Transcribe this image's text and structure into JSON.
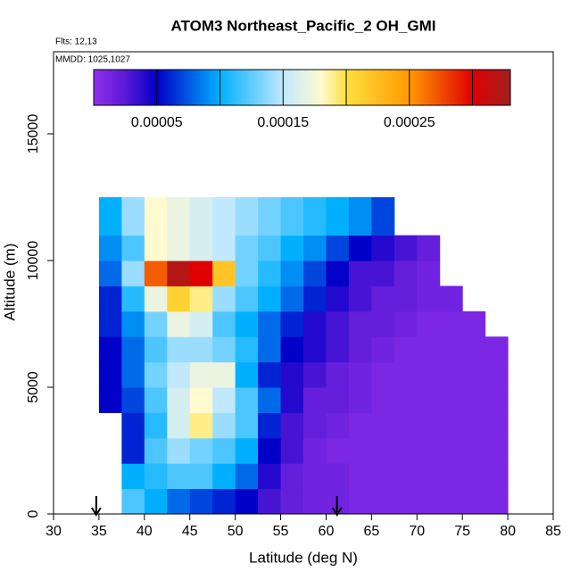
{
  "chart_data": {
    "type": "heatmap",
    "title": "ATOM3 Northeast_Pacific_2 OH_GMI",
    "annotations": [
      "Flts: 12,13",
      "MMDD: 1025,1027"
    ],
    "x_label": "Latitude (deg N)",
    "y_label": "Altitude (m)",
    "xlim": [
      30,
      85
    ],
    "ylim": [
      0,
      18240
    ],
    "xticks": [
      30,
      35,
      40,
      45,
      50,
      55,
      60,
      65,
      70,
      75,
      80,
      85
    ],
    "yticks": [
      0,
      5000,
      10000,
      15000
    ],
    "x_bins": [
      35,
      37.5,
      40,
      42.5,
      45,
      47.5,
      50,
      52.5,
      55,
      57.5,
      60,
      62.5,
      65,
      67.5,
      70,
      72.5,
      75,
      77.5,
      80
    ],
    "y_bins": [
      0,
      1000,
      2000,
      3000,
      4000,
      5000,
      6000,
      7000,
      8000,
      9000,
      10000,
      11000,
      12500
    ],
    "values": [
      [
        null,
        0.00012,
        0.0001,
        8e-05,
        7e-05,
        6e-05,
        5e-05,
        3e-05,
        2e-05,
        1.5e-05,
        1.5e-05,
        1e-05,
        1e-05,
        1e-05,
        1e-05,
        1e-05,
        1e-05,
        1e-05
      ],
      [
        null,
        0.0001,
        0.00011,
        0.00012,
        0.00012,
        0.0001,
        8e-05,
        4e-05,
        2e-05,
        1.5e-05,
        1.5e-05,
        1e-05,
        1e-05,
        1e-05,
        1e-05,
        1e-05,
        1e-05,
        1e-05
      ],
      [
        null,
        6e-05,
        0.00012,
        0.00014,
        0.00013,
        0.00012,
        0.0001,
        5e-05,
        3e-05,
        1.5e-05,
        1e-05,
        1e-05,
        1e-05,
        1e-05,
        1e-05,
        1e-05,
        1e-05,
        1e-05
      ],
      [
        null,
        6e-05,
        0.00011,
        0.00016,
        0.00019,
        0.00014,
        0.00012,
        6e-05,
        3e-05,
        2e-05,
        1.5e-05,
        1e-05,
        1e-05,
        1e-05,
        1e-05,
        1e-05,
        1e-05,
        1e-05
      ],
      [
        5e-05,
        7e-05,
        0.00012,
        0.00016,
        0.00018,
        0.00015,
        0.00012,
        8e-05,
        4e-05,
        2e-05,
        2e-05,
        1.5e-05,
        1e-05,
        1e-05,
        1e-05,
        1e-05,
        1e-05,
        1e-05
      ],
      [
        5e-05,
        8e-05,
        0.00013,
        0.00015,
        0.00017,
        0.00017,
        0.0001,
        6e-05,
        4e-05,
        3e-05,
        2e-05,
        1.5e-05,
        1e-05,
        1e-05,
        1e-05,
        1e-05,
        1e-05,
        1e-05
      ],
      [
        5e-05,
        8e-05,
        0.00012,
        0.00014,
        0.00014,
        0.00013,
        0.00011,
        8e-05,
        5e-05,
        4e-05,
        3e-05,
        2e-05,
        1.5e-05,
        1e-05,
        1e-05,
        1e-05,
        1e-05,
        1e-05
      ],
      [
        6e-05,
        9e-05,
        0.00013,
        0.00017,
        0.00016,
        0.00012,
        0.0001,
        8e-05,
        6e-05,
        4e-05,
        3e-05,
        2e-05,
        2e-05,
        1.5e-05,
        1e-05,
        1e-05,
        1e-05,
        null
      ],
      [
        6e-05,
        0.00011,
        0.00017,
        0.00021,
        0.00019,
        0.00014,
        0.00012,
        0.0001,
        8e-05,
        6e-05,
        4e-05,
        3e-05,
        2e-05,
        2e-05,
        1.5e-05,
        1.5e-05,
        null,
        null
      ],
      [
        8e-05,
        0.00014,
        0.00027,
        0.00032,
        0.0003,
        0.00022,
        0.00013,
        0.00011,
        9e-05,
        7e-05,
        5e-05,
        3e-05,
        3e-05,
        2e-05,
        1.5e-05,
        null,
        null,
        null
      ],
      [
        9e-05,
        0.00012,
        0.00018,
        0.00017,
        0.00016,
        0.00015,
        0.00013,
        0.00012,
        0.0001,
        9e-05,
        7e-05,
        5e-05,
        4e-05,
        3e-05,
        2e-05,
        null,
        null,
        null
      ],
      [
        0.0001,
        0.00014,
        0.00018,
        0.00017,
        0.00016,
        0.00015,
        0.00014,
        0.00013,
        0.00012,
        0.00011,
        0.0001,
        9e-05,
        7e-05,
        null,
        null,
        null,
        null,
        null
      ]
    ],
    "colorbar_lim": [
      0,
      0.00033
    ],
    "colorbar_ticks": [
      5e-05,
      0.00015,
      0.00025
    ],
    "colorbar_divisions": [
      5e-05,
      0.0001,
      0.00015,
      0.0002,
      0.00025,
      0.0003
    ],
    "colorscale": [
      [
        0,
        "#9131ee"
      ],
      [
        2.5e-05,
        "#5a19d6"
      ],
      [
        5e-05,
        "#0000c8"
      ],
      [
        0.0001,
        "#00b0ff"
      ],
      [
        0.00015,
        "#c0e8ff"
      ],
      [
        0.00018,
        "#fffad0"
      ],
      [
        0.0002,
        "#ffe040"
      ],
      [
        0.00025,
        "#ff9a00"
      ],
      [
        0.0003,
        "#e00000"
      ],
      [
        0.00033,
        "#a02020"
      ]
    ],
    "arrows_x": [
      34.7,
      61.2
    ]
  }
}
